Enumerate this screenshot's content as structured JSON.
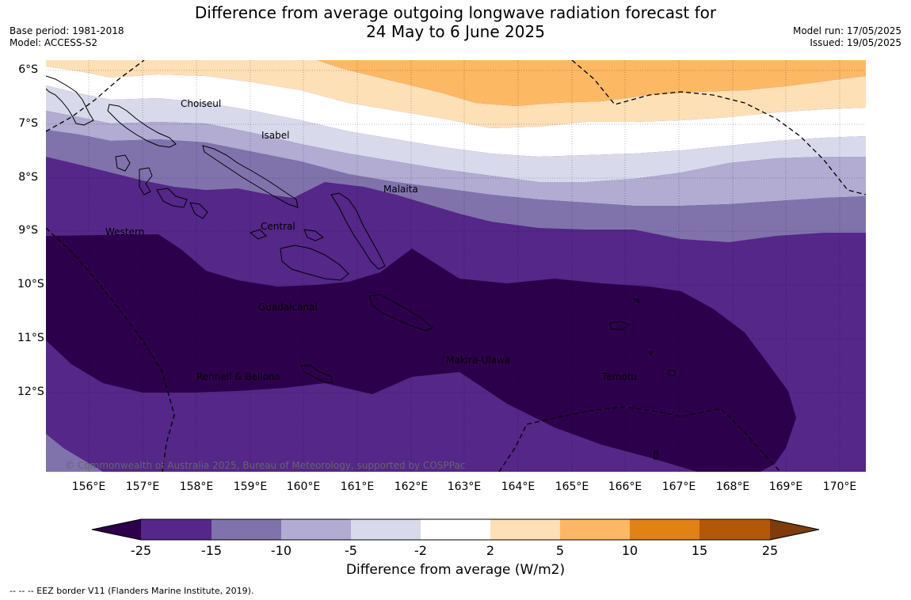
{
  "title": {
    "line1": "Difference from average outgoing longwave radiation forecast for",
    "line2": "24 May to 6 June 2025"
  },
  "meta_left": {
    "base_period": "Base period: 1981-2018",
    "model": "Model: ACCESS-S2"
  },
  "meta_right": {
    "model_run": "Model run: 17/05/2025",
    "issued": "Issued: 19/05/2025"
  },
  "map": {
    "x_ticks": [
      "156°E",
      "157°E",
      "158°E",
      "159°E",
      "160°E",
      "161°E",
      "162°E",
      "163°E",
      "164°E",
      "165°E",
      "166°E",
      "167°E",
      "168°E",
      "169°E",
      "170°E"
    ],
    "y_ticks": [
      "6°S",
      "7°S",
      "8°S",
      "9°S",
      "10°S",
      "11°S",
      "12°S"
    ],
    "places": [
      "Choiseul",
      "Isabel",
      "Malaita",
      "Western",
      "Central",
      "Guadalcanal",
      "Makira-Ulawa",
      "Rennell & Bellona",
      "Temotu"
    ],
    "copyright": "© Commonwealth of Australia 2025, Bureau of Meteorology, supported by COSPPac",
    "eez_style": "dashed"
  },
  "colorbar": {
    "labels": [
      "-25",
      "-15",
      "-10",
      "-5",
      "-2",
      "2",
      "5",
      "10",
      "15",
      "25"
    ],
    "colors": [
      "#2d004b",
      "#542788",
      "#8073ac",
      "#b2abd2",
      "#d8daeb",
      "#ffffff",
      "#fee0b6",
      "#fdb863",
      "#e08214",
      "#b35806",
      "#7f3b08"
    ],
    "title": "Difference from average (W/m2)"
  },
  "footnote": "--  --  -- EEZ border V11 (Flanders Marine Institute, 2019)."
}
